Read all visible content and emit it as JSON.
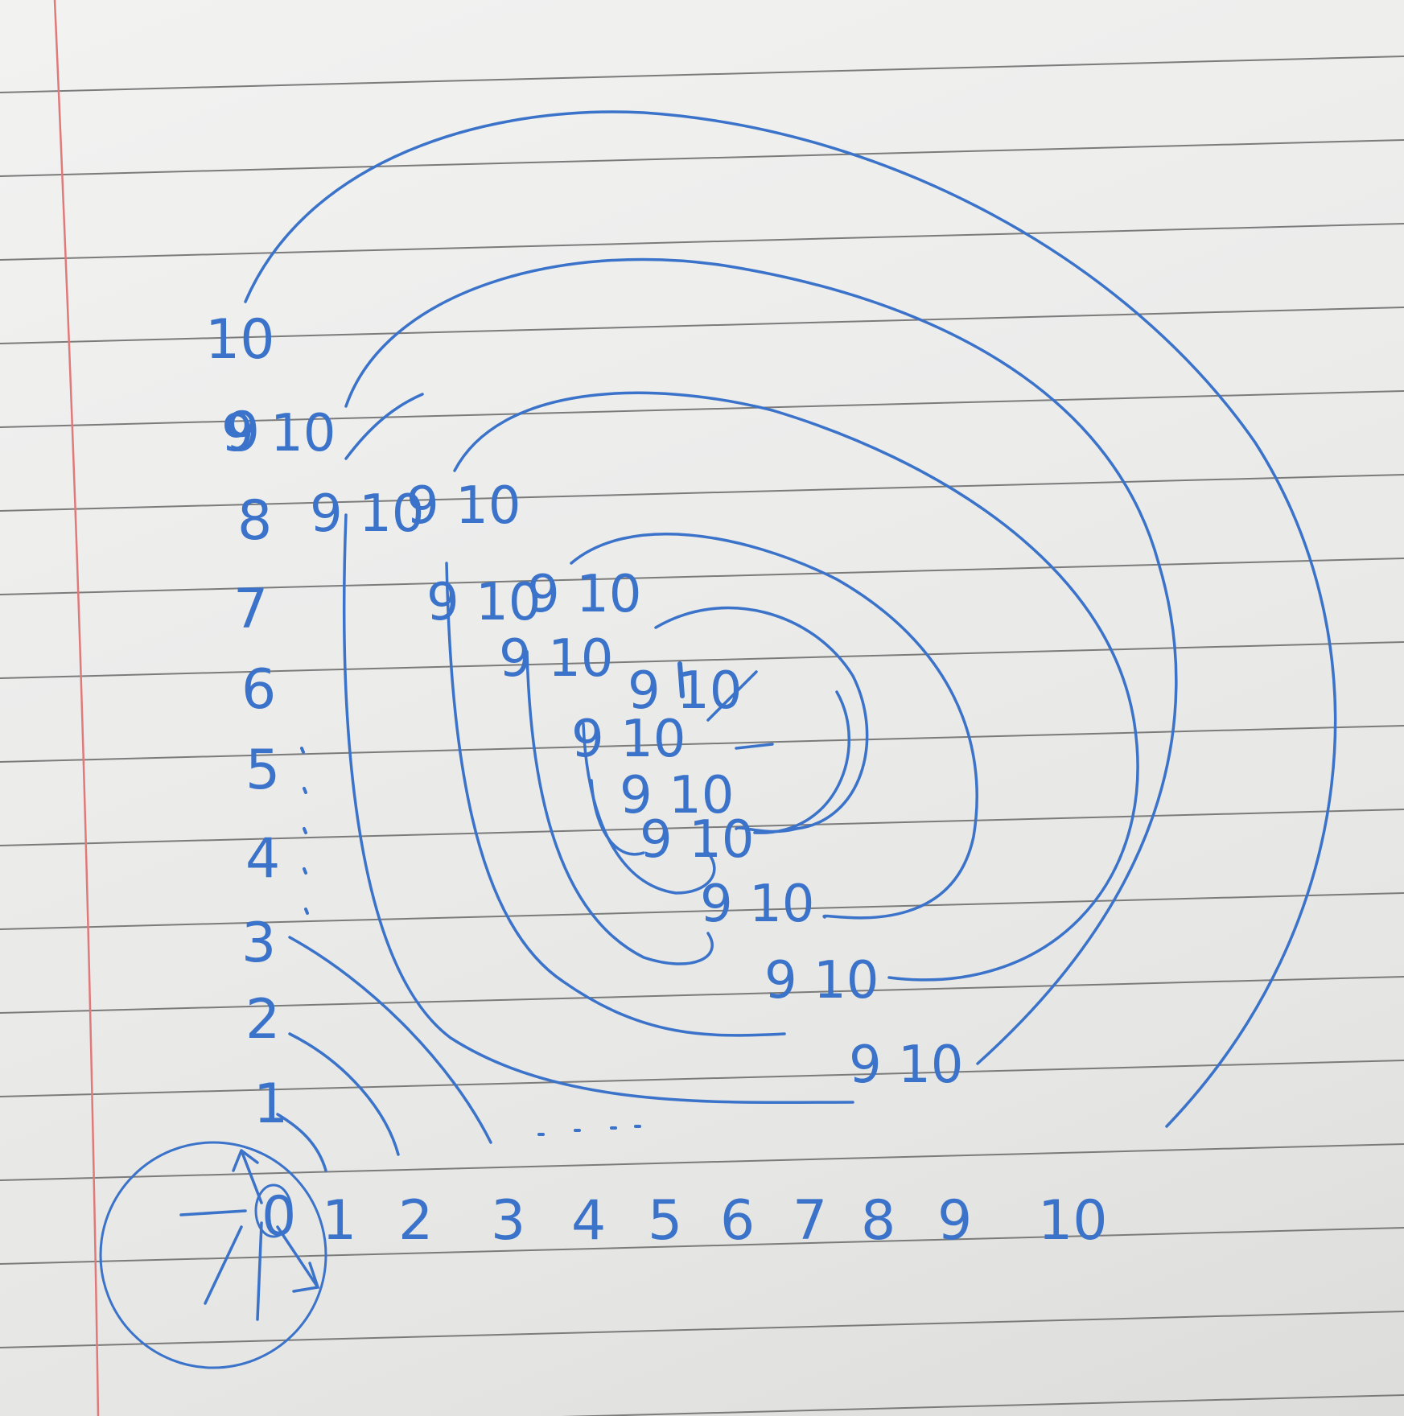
{
  "image": {
    "subject": "handwritten spiral number diagram on lined notebook paper",
    "paper_color": "#ecebea",
    "rule_color": "#7b7b7b",
    "margin_line_color": "#e07a7a",
    "ink_color": "#3a73c9"
  },
  "handwriting": {
    "origin": "0",
    "y_axis": [
      "1",
      "2",
      "3",
      "4",
      "5",
      "6",
      "7",
      "8",
      "9",
      "10"
    ],
    "x_axis": [
      "1",
      "2",
      "3",
      "4",
      "5",
      "6",
      "7",
      "8",
      "9",
      "10"
    ],
    "diagonal_pairs": [
      "9 10",
      "9 10",
      "9 10",
      "9 10",
      "9 10",
      "9 10",
      "9 10",
      "9 10",
      "9 10",
      "9 10",
      "9 10",
      "9 10",
      "9 10"
    ]
  }
}
